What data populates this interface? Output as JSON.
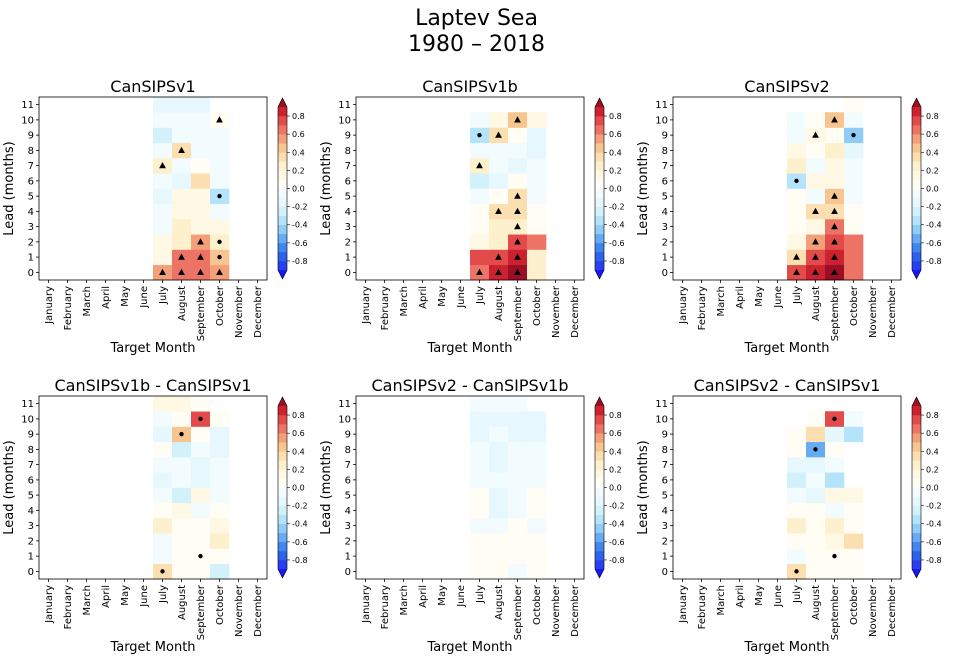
{
  "title_line1": "Laptev Sea",
  "title_line2": "1980 – 2018",
  "months": [
    "January",
    "February",
    "March",
    "April",
    "May",
    "June",
    "July",
    "August",
    "September",
    "October",
    "November",
    "December"
  ],
  "leads": [
    0,
    1,
    2,
    3,
    4,
    5,
    6,
    7,
    8,
    9,
    10,
    11
  ],
  "xlabel": "Target Month",
  "ylabel": "Lead (months)",
  "colorbar_ticks": [
    -0.8,
    -0.6,
    -0.4,
    -0.2,
    0.0,
    0.2,
    0.4,
    0.6,
    0.8
  ],
  "colormap": {
    "name": "RdYlBu_r-like (blue-white-red), 20 discrete levels",
    "vmin": -1.0,
    "vmax": 1.0,
    "colors": [
      "#1717ff",
      "#2940f0",
      "#2f62ea",
      "#3f86ee",
      "#67abf5",
      "#8fcdf8",
      "#b3e4fb",
      "#d3f1fb",
      "#e6f7fd",
      "#f2fbfe",
      "#fffdf4",
      "#fff8e4",
      "#fdf0cd",
      "#fbdfb1",
      "#f7c590",
      "#f3a078",
      "#ec7365",
      "#e34a4a",
      "#cc2230",
      "#9c0e25"
    ]
  },
  "chart_data": [
    {
      "type": "heatmap",
      "title": "CanSIPSv1",
      "xlabel": "Target Month",
      "ylabel": "Lead (months)",
      "columns": [
        "July",
        "August",
        "September",
        "October"
      ],
      "values_by_lead": {
        "0": [
          0.5,
          0.65,
          0.65,
          0.5
        ],
        "1": [
          0.15,
          0.65,
          0.65,
          0.45
        ],
        "2": [
          0.15,
          0.2,
          0.55,
          0.2
        ],
        "3": [
          -0.08,
          0.2,
          0.15,
          0.1
        ],
        "4": [
          -0.08,
          0.15,
          0.15,
          -0.05
        ],
        "5": [
          -0.12,
          0.15,
          0.15,
          -0.35
        ],
        "6": [
          -0.08,
          -0.12,
          0.3,
          -0.1
        ],
        "7": [
          0.28,
          -0.05,
          0.05,
          -0.05
        ],
        "8": [
          -0.05,
          0.3,
          -0.05,
          -0.05
        ],
        "9": [
          -0.22,
          -0.05,
          -0.05,
          -0.1
        ],
        "10": [
          -0.05,
          -0.05,
          -0.05,
          0.08
        ],
        "11": [
          -0.15,
          -0.15,
          -0.12,
          null
        ]
      },
      "markers": [
        {
          "month": "July",
          "lead": 0,
          "symbol": "triangle"
        },
        {
          "month": "August",
          "lead": 0,
          "symbol": "triangle"
        },
        {
          "month": "September",
          "lead": 0,
          "symbol": "triangle"
        },
        {
          "month": "October",
          "lead": 0,
          "symbol": "triangle"
        },
        {
          "month": "August",
          "lead": 1,
          "symbol": "triangle"
        },
        {
          "month": "September",
          "lead": 1,
          "symbol": "triangle"
        },
        {
          "month": "October",
          "lead": 1,
          "symbol": "dot"
        },
        {
          "month": "September",
          "lead": 2,
          "symbol": "triangle"
        },
        {
          "month": "October",
          "lead": 2,
          "symbol": "dot"
        },
        {
          "month": "October",
          "lead": 5,
          "symbol": "dot"
        },
        {
          "month": "July",
          "lead": 7,
          "symbol": "triangle"
        },
        {
          "month": "August",
          "lead": 8,
          "symbol": "triangle"
        },
        {
          "month": "October",
          "lead": 10,
          "symbol": "triangle"
        }
      ]
    },
    {
      "type": "heatmap",
      "title": "CanSIPSv1b",
      "xlabel": "Target Month",
      "ylabel": "Lead (months)",
      "columns": [
        "July",
        "August",
        "September",
        "October"
      ],
      "values_by_lead": {
        "0": [
          0.65,
          0.85,
          0.95,
          0.25
        ],
        "1": [
          0.7,
          0.75,
          0.85,
          0.25
        ],
        "2": [
          0.15,
          0.25,
          0.7,
          0.6
        ],
        "3": [
          0.05,
          0.2,
          0.25,
          0.05
        ],
        "4": [
          0.05,
          0.35,
          0.3,
          0.05
        ],
        "5": [
          -0.05,
          0.05,
          0.35,
          -0.05
        ],
        "6": [
          -0.25,
          -0.15,
          0.08,
          -0.05
        ],
        "7": [
          0.2,
          -0.05,
          -0.12,
          -0.05
        ],
        "8": [
          -0.05,
          -0.05,
          -0.05,
          -0.15
        ],
        "9": [
          -0.4,
          0.3,
          0.08,
          -0.12
        ],
        "10": [
          -0.05,
          0.1,
          0.45,
          0.1
        ],
        "11": [
          null,
          null,
          null,
          null
        ]
      },
      "markers": [
        {
          "month": "July",
          "lead": 0,
          "symbol": "triangle"
        },
        {
          "month": "August",
          "lead": 0,
          "symbol": "triangle"
        },
        {
          "month": "September",
          "lead": 0,
          "symbol": "triangle"
        },
        {
          "month": "August",
          "lead": 1,
          "symbol": "triangle"
        },
        {
          "month": "September",
          "lead": 1,
          "symbol": "triangle"
        },
        {
          "month": "September",
          "lead": 2,
          "symbol": "triangle"
        },
        {
          "month": "September",
          "lead": 3,
          "symbol": "triangle"
        },
        {
          "month": "August",
          "lead": 4,
          "symbol": "triangle"
        },
        {
          "month": "September",
          "lead": 4,
          "symbol": "triangle"
        },
        {
          "month": "September",
          "lead": 5,
          "symbol": "triangle"
        },
        {
          "month": "July",
          "lead": 7,
          "symbol": "triangle"
        },
        {
          "month": "July",
          "lead": 9,
          "symbol": "dot"
        },
        {
          "month": "August",
          "lead": 9,
          "symbol": "triangle"
        },
        {
          "month": "September",
          "lead": 10,
          "symbol": "triangle"
        }
      ]
    },
    {
      "type": "heatmap",
      "title": "CanSIPSv2",
      "xlabel": "Target Month",
      "ylabel": "Lead (months)",
      "columns": [
        "July",
        "August",
        "September",
        "October"
      ],
      "values_by_lead": {
        "0": [
          0.7,
          0.85,
          0.9,
          0.6
        ],
        "1": [
          0.35,
          0.75,
          0.85,
          0.6
        ],
        "2": [
          0.15,
          0.55,
          0.75,
          0.6
        ],
        "3": [
          0.08,
          0.15,
          0.65,
          0.05
        ],
        "4": [
          0.05,
          0.3,
          0.3,
          0.05
        ],
        "5": [
          0.05,
          -0.05,
          0.45,
          -0.05
        ],
        "6": [
          -0.4,
          0.12,
          0.12,
          -0.05
        ],
        "7": [
          0.25,
          -0.05,
          0.1,
          -0.05
        ],
        "8": [
          0.1,
          0.08,
          0.2,
          -0.15
        ],
        "9": [
          -0.08,
          0.15,
          0.05,
          -0.5
        ],
        "10": [
          -0.05,
          0.08,
          0.4,
          -0.05
        ],
        "11": [
          null,
          null,
          null,
          0.05
        ]
      },
      "markers": [
        {
          "month": "July",
          "lead": 0,
          "symbol": "triangle"
        },
        {
          "month": "August",
          "lead": 0,
          "symbol": "triangle"
        },
        {
          "month": "September",
          "lead": 0,
          "symbol": "triangle"
        },
        {
          "month": "July",
          "lead": 1,
          "symbol": "triangle"
        },
        {
          "month": "August",
          "lead": 1,
          "symbol": "triangle"
        },
        {
          "month": "September",
          "lead": 1,
          "symbol": "triangle"
        },
        {
          "month": "August",
          "lead": 2,
          "symbol": "triangle"
        },
        {
          "month": "September",
          "lead": 2,
          "symbol": "triangle"
        },
        {
          "month": "September",
          "lead": 3,
          "symbol": "triangle"
        },
        {
          "month": "August",
          "lead": 4,
          "symbol": "triangle"
        },
        {
          "month": "September",
          "lead": 4,
          "symbol": "triangle"
        },
        {
          "month": "September",
          "lead": 5,
          "symbol": "triangle"
        },
        {
          "month": "July",
          "lead": 6,
          "symbol": "dot"
        },
        {
          "month": "August",
          "lead": 9,
          "symbol": "triangle"
        },
        {
          "month": "October",
          "lead": 9,
          "symbol": "dot"
        },
        {
          "month": "September",
          "lead": 10,
          "symbol": "triangle"
        }
      ]
    },
    {
      "type": "heatmap",
      "title": "CanSIPSv1b - CanSIPSv1",
      "xlabel": "Target Month",
      "ylabel": "Lead (months)",
      "columns": [
        "July",
        "August",
        "September",
        "October"
      ],
      "values_by_lead": {
        "0": [
          0.35,
          0.05,
          0.08,
          -0.25
        ],
        "1": [
          -0.08,
          0.05,
          0.05,
          0.05
        ],
        "2": [
          -0.08,
          0.08,
          0.05,
          0.25
        ],
        "3": [
          0.2,
          0.05,
          0.05,
          0.15
        ],
        "4": [
          0.05,
          0.12,
          -0.08,
          0.05
        ],
        "5": [
          -0.05,
          -0.3,
          0.15,
          -0.08
        ],
        "6": [
          -0.15,
          -0.05,
          -0.2,
          -0.05
        ],
        "7": [
          -0.05,
          -0.05,
          -0.2,
          -0.05
        ],
        "8": [
          0.05,
          -0.3,
          -0.08,
          -0.15
        ],
        "9": [
          -0.12,
          0.4,
          0.08,
          -0.2
        ],
        "10": [
          -0.05,
          0.05,
          0.75,
          0.05
        ],
        "11": [
          0.12,
          0.12,
          0.08,
          null
        ]
      },
      "markers": [
        {
          "month": "July",
          "lead": 0,
          "symbol": "dot"
        },
        {
          "month": "September",
          "lead": 1,
          "symbol": "dot"
        },
        {
          "month": "August",
          "lead": 9,
          "symbol": "dot"
        },
        {
          "month": "September",
          "lead": 10,
          "symbol": "dot"
        }
      ]
    },
    {
      "type": "heatmap",
      "title": "CanSIPSv2 - CanSIPSv1b",
      "xlabel": "Target Month",
      "ylabel": "Lead (months)",
      "columns": [
        "July",
        "August",
        "September",
        "October"
      ],
      "values_by_lead": {
        "0": [
          0.02,
          0.02,
          -0.05,
          0.05
        ],
        "1": [
          0.05,
          0.05,
          0.02,
          0.02
        ],
        "2": [
          0.05,
          0.02,
          0.02,
          0.02
        ],
        "3": [
          -0.05,
          -0.08,
          0.02,
          -0.05
        ],
        "4": [
          0.02,
          -0.15,
          -0.05,
          0.02
        ],
        "5": [
          0.02,
          -0.15,
          -0.05,
          0.05
        ],
        "6": [
          -0.05,
          -0.08,
          -0.05,
          -0.05
        ],
        "7": [
          -0.08,
          -0.15,
          -0.08,
          -0.08
        ],
        "8": [
          -0.08,
          -0.2,
          -0.08,
          -0.08
        ],
        "9": [
          -0.12,
          -0.08,
          -0.12,
          -0.15
        ],
        "10": [
          -0.12,
          -0.12,
          -0.12,
          -0.15
        ],
        "11": [
          -0.1,
          -0.1,
          -0.1,
          null
        ]
      },
      "markers": []
    },
    {
      "type": "heatmap",
      "title": "CanSIPSv2 - CanSIPSv1",
      "xlabel": "Target Month",
      "ylabel": "Lead (months)",
      "columns": [
        "July",
        "August",
        "September",
        "October"
      ],
      "values_by_lead": {
        "0": [
          0.35,
          0.02,
          0.05,
          0.05
        ],
        "1": [
          -0.08,
          0.05,
          0.05,
          0.05
        ],
        "2": [
          0.05,
          0.05,
          0.15,
          0.3
        ],
        "3": [
          0.25,
          0.05,
          0.25,
          0.05
        ],
        "4": [
          0.02,
          0.08,
          -0.08,
          0.05
        ],
        "5": [
          -0.05,
          -0.15,
          0.12,
          0.12
        ],
        "6": [
          -0.25,
          -0.05,
          -0.35,
          null
        ],
        "7": [
          -0.15,
          -0.15,
          -0.05,
          null
        ],
        "8": [
          0.05,
          -0.55,
          0.05,
          null
        ],
        "9": [
          0.05,
          0.3,
          -0.12,
          -0.4
        ],
        "10": [
          null,
          0.05,
          0.75,
          -0.05
        ],
        "11": [
          null,
          null,
          null,
          null
        ]
      },
      "markers": [
        {
          "month": "July",
          "lead": 0,
          "symbol": "dot"
        },
        {
          "month": "September",
          "lead": 1,
          "symbol": "dot"
        },
        {
          "month": "August",
          "lead": 8,
          "symbol": "dot"
        },
        {
          "month": "September",
          "lead": 10,
          "symbol": "dot"
        }
      ]
    }
  ]
}
